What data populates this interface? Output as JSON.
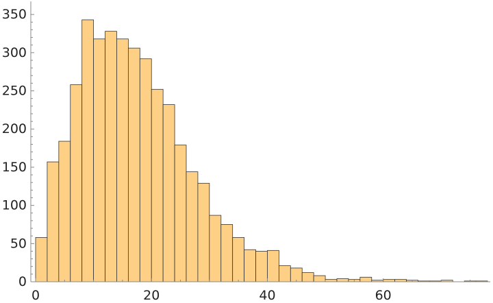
{
  "chart_data": {
    "type": "bar",
    "title": "",
    "xlabel": "",
    "ylabel": "",
    "bin_width": 2,
    "bin_start": 0,
    "values": [
      58,
      157,
      184,
      258,
      343,
      318,
      328,
      318,
      306,
      292,
      252,
      232,
      179,
      144,
      129,
      87,
      75,
      58,
      42,
      40,
      41,
      21,
      18,
      12,
      8,
      3,
      4,
      3,
      6,
      2,
      3,
      3,
      2,
      1,
      1,
      2,
      0,
      1,
      1
    ],
    "xlim": [
      0,
      78
    ],
    "ylim": [
      0,
      360
    ],
    "x_ticks": [
      0,
      20,
      40,
      60
    ],
    "y_ticks": [
      0,
      50,
      100,
      150,
      200,
      250,
      300,
      350
    ],
    "bar_color": "#FDD086",
    "grid": false
  }
}
